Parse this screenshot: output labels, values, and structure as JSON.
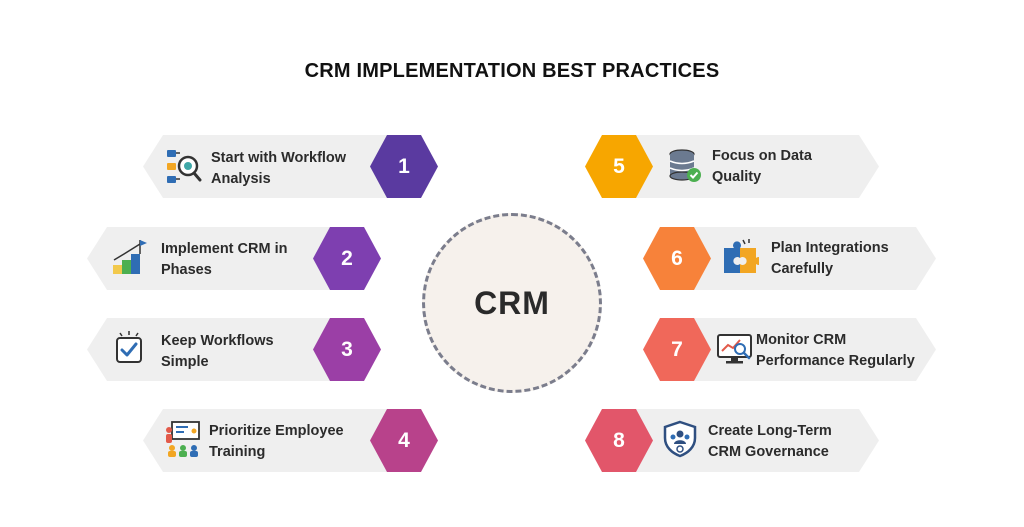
{
  "title": "CRM IMPLEMENTATION BEST PRACTICES",
  "center": {
    "label": "CRM"
  },
  "items": [
    {
      "number": "1",
      "text": "Start with Workflow\nAnalysis",
      "color": "#5a3aa0",
      "icon": "workflow-analysis-icon"
    },
    {
      "number": "2",
      "text": "Implement CRM in\nPhases",
      "color": "#7e3fb0",
      "icon": "growth-stairs-flag-icon"
    },
    {
      "number": "3",
      "text": "Keep Workflows\nSimple",
      "color": "#9b3fa6",
      "icon": "checkbox-icon"
    },
    {
      "number": "4",
      "text": "Prioritize Employee\nTraining",
      "color": "#b8428b",
      "icon": "training-presentation-icon"
    },
    {
      "number": "5",
      "text": "Focus on Data\nQuality",
      "color": "#f7a600",
      "icon": "database-check-icon"
    },
    {
      "number": "6",
      "text": "Plan Integrations\nCarefully",
      "color": "#f7823a",
      "icon": "puzzle-icon"
    },
    {
      "number": "7",
      "text": "Monitor CRM\nPerformance Regularly",
      "color": "#f0685a",
      "icon": "monitor-analytics-icon"
    },
    {
      "number": "8",
      "text": "Create Long-Term\nCRM Governance",
      "color": "#e2566a",
      "icon": "governance-shield-icon"
    }
  ]
}
